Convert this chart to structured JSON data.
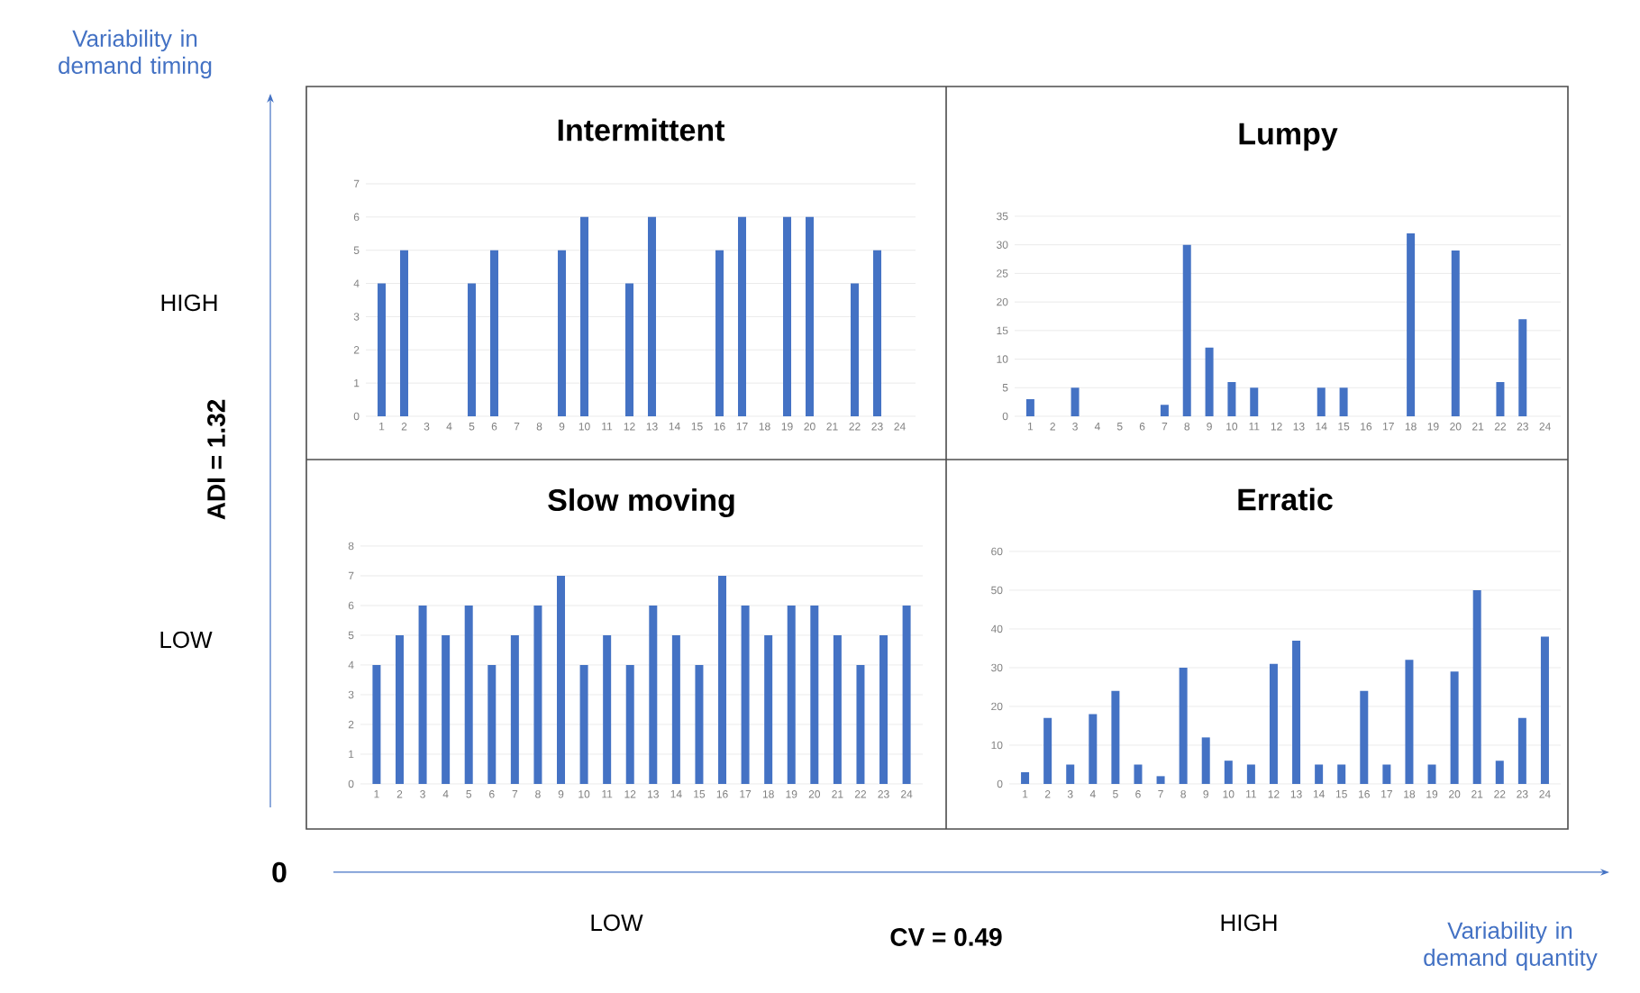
{
  "chart_data": [
    {
      "type": "bar",
      "title": "Intermittent",
      "categories": [
        "1",
        "2",
        "3",
        "4",
        "5",
        "6",
        "7",
        "8",
        "9",
        "10",
        "11",
        "12",
        "13",
        "14",
        "15",
        "16",
        "17",
        "18",
        "19",
        "20",
        "21",
        "22",
        "23",
        "24"
      ],
      "values": [
        4,
        5,
        0,
        0,
        4,
        5,
        0,
        0,
        5,
        6,
        0,
        4,
        6,
        0,
        0,
        5,
        6,
        0,
        6,
        6,
        0,
        4,
        5,
        0
      ],
      "color": "#4472c4",
      "ylim": [
        0,
        7
      ],
      "yticks": [
        0,
        1,
        2,
        3,
        4,
        5,
        6,
        7
      ],
      "grid": "y"
    },
    {
      "type": "bar",
      "title": "Lumpy",
      "categories": [
        "1",
        "2",
        "3",
        "4",
        "5",
        "6",
        "7",
        "8",
        "9",
        "10",
        "11",
        "12",
        "13",
        "14",
        "15",
        "16",
        "17",
        "18",
        "19",
        "20",
        "21",
        "22",
        "23",
        "24"
      ],
      "values": [
        3,
        0,
        5,
        0,
        0,
        0,
        2,
        30,
        12,
        6,
        5,
        0,
        0,
        5,
        5,
        0,
        0,
        32,
        0,
        29,
        0,
        6,
        17,
        0
      ],
      "color": "#4472c4",
      "ylim": [
        0,
        35
      ],
      "yticks": [
        0,
        5,
        10,
        15,
        20,
        25,
        30,
        35
      ],
      "grid": "y"
    },
    {
      "type": "bar",
      "title": "Slow moving",
      "categories": [
        "1",
        "2",
        "3",
        "4",
        "5",
        "6",
        "7",
        "8",
        "9",
        "10",
        "11",
        "12",
        "13",
        "14",
        "15",
        "16",
        "17",
        "18",
        "19",
        "20",
        "21",
        "22",
        "23",
        "24"
      ],
      "values": [
        4,
        5,
        6,
        5,
        6,
        4,
        5,
        6,
        7,
        4,
        5,
        4,
        6,
        5,
        4,
        7,
        6,
        5,
        6,
        6,
        5,
        4,
        5,
        6
      ],
      "color": "#4472c4",
      "ylim": [
        0,
        8
      ],
      "yticks": [
        0,
        1,
        2,
        3,
        4,
        5,
        6,
        7,
        8
      ],
      "grid": "y"
    },
    {
      "type": "bar",
      "title": "Erratic",
      "categories": [
        "1",
        "2",
        "3",
        "4",
        "5",
        "6",
        "7",
        "8",
        "9",
        "10",
        "11",
        "12",
        "13",
        "14",
        "15",
        "16",
        "17",
        "18",
        "19",
        "20",
        "21",
        "22",
        "23",
        "24"
      ],
      "values": [
        3,
        17,
        5,
        18,
        24,
        5,
        2,
        30,
        12,
        6,
        5,
        31,
        37,
        5,
        5,
        24,
        5,
        32,
        5,
        29,
        50,
        6,
        17,
        38
      ],
      "color": "#4472c4",
      "ylim": [
        0,
        60
      ],
      "yticks": [
        0,
        10,
        20,
        30,
        40,
        50,
        60
      ],
      "grid": "y"
    },
    {
      "type": "other",
      "annotations": [
        "Variability in demand timing",
        "HIGH",
        "LOW",
        "ADI = 1.32",
        "0",
        "LOW",
        "CV = 0.49",
        "HIGH",
        "Variability in demand quantity"
      ]
    }
  ]
}
